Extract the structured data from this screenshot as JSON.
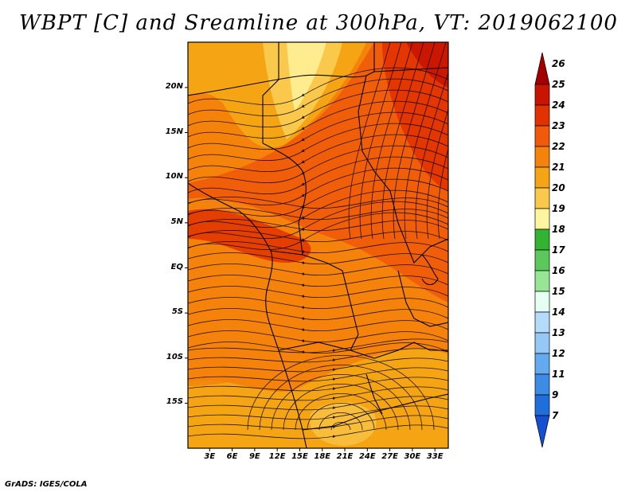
{
  "title": "WBPT [C] and Sreamline at 300hPa, VT: 2019062100",
  "credit": "GrADS: IGES/COLA",
  "axes": {
    "lat_ticks": [
      {
        "value": 20,
        "label": "20N"
      },
      {
        "value": 15,
        "label": "15N"
      },
      {
        "value": 10,
        "label": "10N"
      },
      {
        "value": 5,
        "label": "5N"
      },
      {
        "value": 0,
        "label": "EQ"
      },
      {
        "value": -5,
        "label": "5S"
      },
      {
        "value": -10,
        "label": "10S"
      },
      {
        "value": -15,
        "label": "15S"
      }
    ],
    "lon_ticks": [
      {
        "value": 3,
        "label": "3E"
      },
      {
        "value": 6,
        "label": "6E"
      },
      {
        "value": 9,
        "label": "9E"
      },
      {
        "value": 12,
        "label": "12E"
      },
      {
        "value": 15,
        "label": "15E"
      },
      {
        "value": 18,
        "label": "18E"
      },
      {
        "value": 21,
        "label": "21E"
      },
      {
        "value": 24,
        "label": "24E"
      },
      {
        "value": 27,
        "label": "27E"
      },
      {
        "value": 30,
        "label": "30E"
      },
      {
        "value": 33,
        "label": "33E"
      }
    ],
    "lon_range": [
      0,
      35
    ],
    "lat_range": [
      -20,
      25
    ]
  },
  "colorbar": {
    "levels": [
      {
        "label": "26",
        "color": "#a50000"
      },
      {
        "label": "25",
        "color": "#c81400"
      },
      {
        "label": "24",
        "color": "#e13200"
      },
      {
        "label": "23",
        "color": "#f05a0a"
      },
      {
        "label": "22",
        "color": "#f5820a"
      },
      {
        "label": "21",
        "color": "#f5a514"
      },
      {
        "label": "20",
        "color": "#fac84b"
      },
      {
        "label": "19",
        "color": "#fff5a0"
      },
      {
        "label": "18",
        "color": "#32b432"
      },
      {
        "label": "17",
        "color": "#5ac85a"
      },
      {
        "label": "16",
        "color": "#96e696"
      },
      {
        "label": "15",
        "color": "#e6fff5"
      },
      {
        "label": "14",
        "color": "#b4dcfa"
      },
      {
        "label": "13",
        "color": "#96c8f5"
      },
      {
        "label": "12",
        "color": "#64aaf0"
      },
      {
        "label": "11",
        "color": "#3c8ce6"
      },
      {
        "label": "9",
        "color": "#1e6edc"
      },
      {
        "label": "7",
        "color": "#1450d2"
      }
    ]
  }
}
